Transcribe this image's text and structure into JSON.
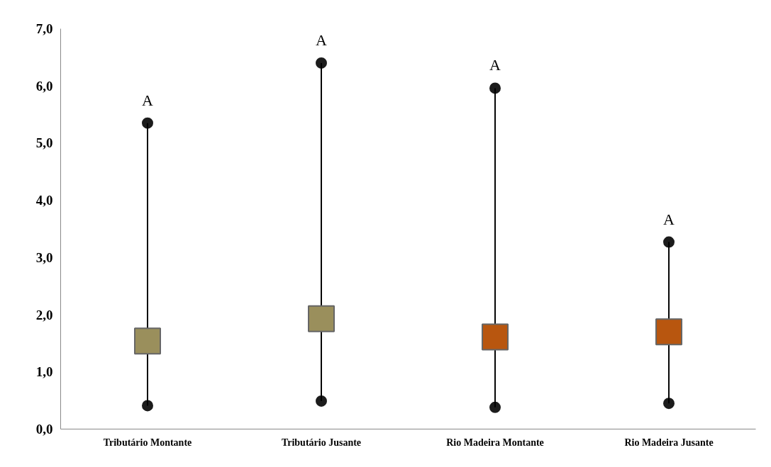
{
  "chart_data": {
    "type": "scatter",
    "categories": [
      "Tributário Montante",
      "Tributário Jusante",
      "Rio Madeira Montante",
      "Rio Madeira Jusante"
    ],
    "series": [
      {
        "values": [
          5.35,
          6.4,
          5.96,
          3.27
        ],
        "color": "#1c1c1c",
        "marker": "circle"
      },
      {
        "values": [
          0.41,
          0.49,
          0.38,
          0.45
        ],
        "color": "#1c1c1c",
        "marker": "circle"
      },
      {
        "type": "bar",
        "base": [
          0.41,
          0.49,
          0.38,
          0.45
        ],
        "values": [
          4.94,
          5.91,
          5.58,
          2.82
        ],
        "color": "#000000"
      },
      {
        "values": [
          1.54,
          1.93,
          1.61,
          1.7
        ],
        "colors": [
          "#9a8f5c",
          "#9a8f5c",
          "#b8560f",
          "#b8560f"
        ],
        "marker": "square"
      }
    ],
    "ylim": [
      0,
      7
    ],
    "yticks": [
      {
        "value": 0,
        "label": "0,0"
      },
      {
        "value": 1,
        "label": "1,0"
      },
      {
        "value": 2,
        "label": "2,0"
      },
      {
        "value": 3,
        "label": "3,0"
      },
      {
        "value": 4,
        "label": "4,0"
      },
      {
        "value": 5,
        "label": "5,0"
      },
      {
        "value": 6,
        "label": "6,0"
      },
      {
        "value": 7,
        "label": "7,0"
      }
    ],
    "grid": false,
    "annotations": [
      "A",
      "A",
      "A",
      "A"
    ]
  }
}
